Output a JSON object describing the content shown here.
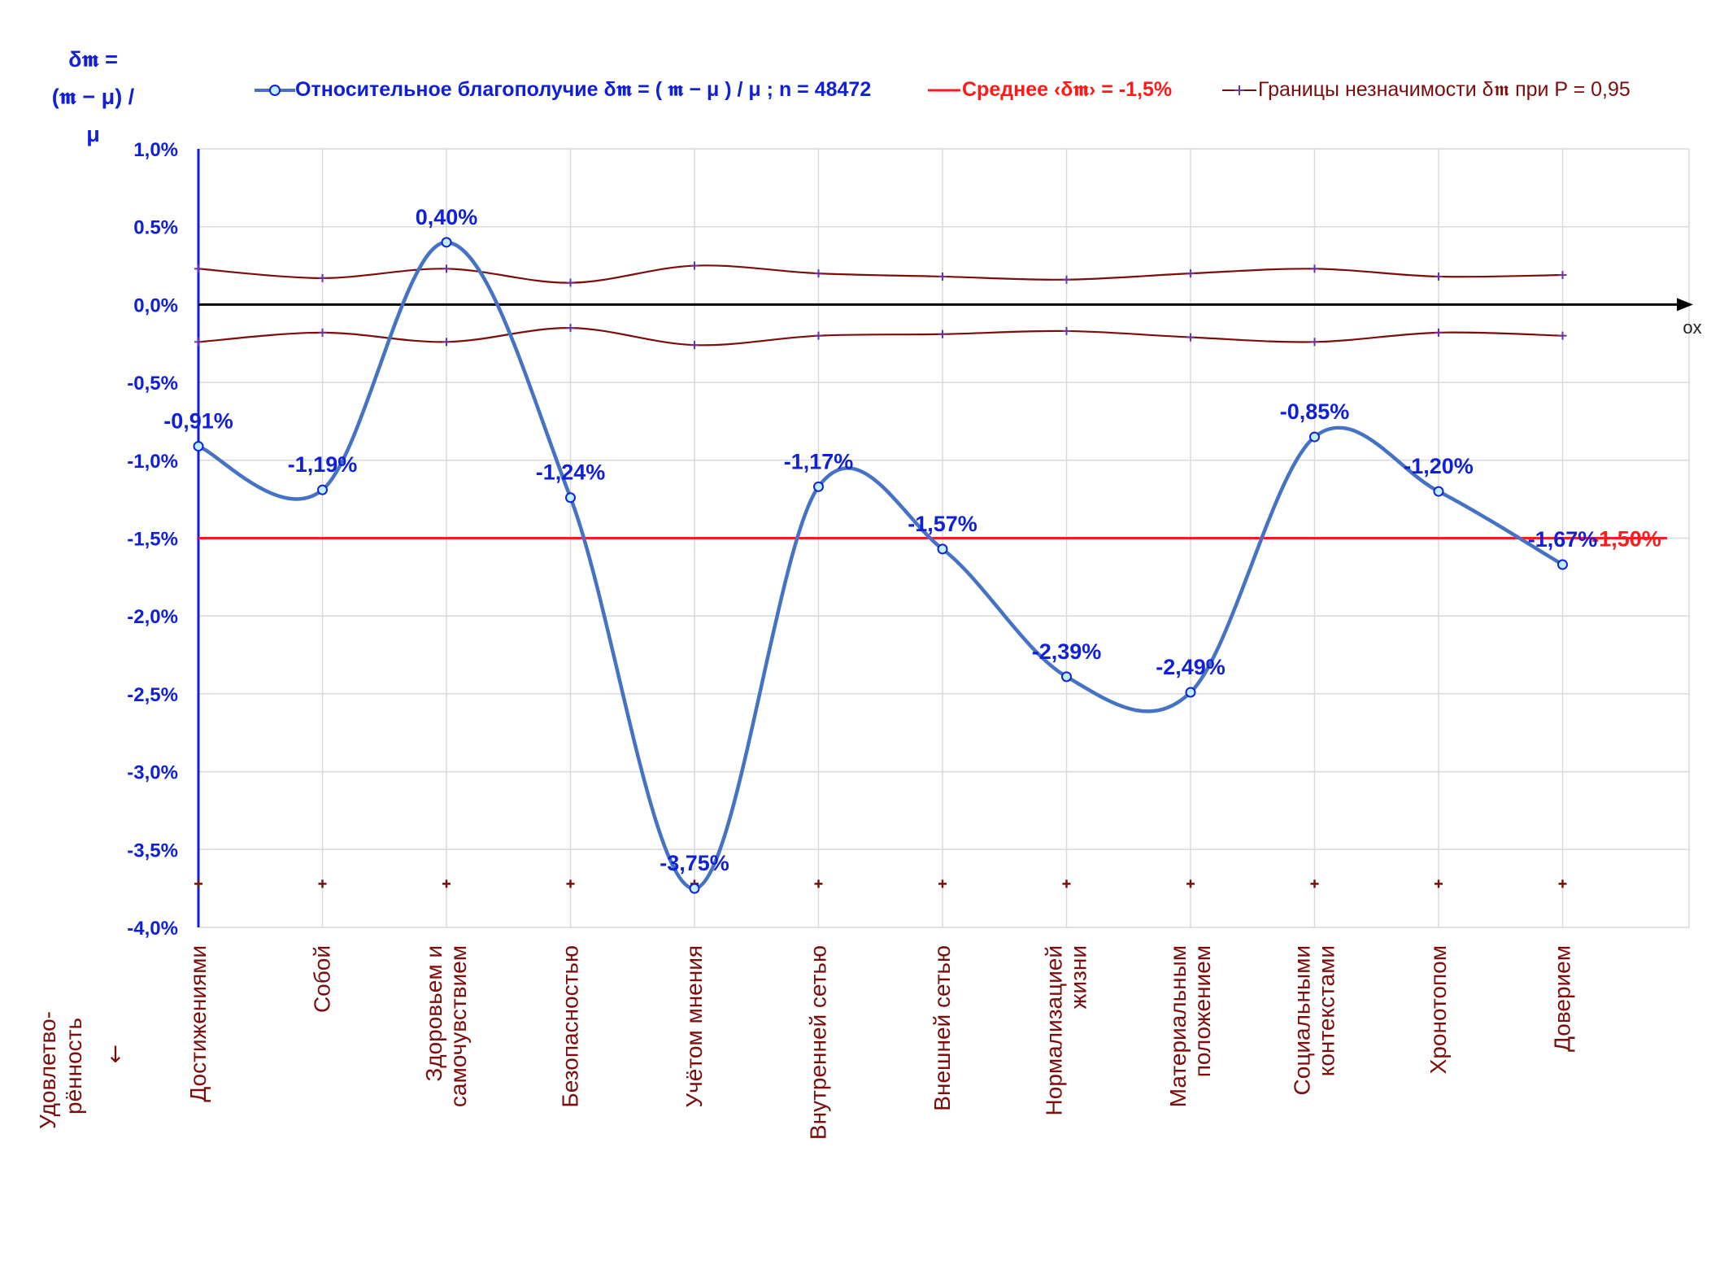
{
  "chart_data": {
    "type": "line",
    "y_axis_title": [
      "δ𝖒 =",
      "(𝖒 − μ) / μ"
    ],
    "x_axis_title": "Удовлетво-рённость ↓",
    "x_axis_name": "ox",
    "categories": [
      [
        "Достижениями"
      ],
      [
        "Собой"
      ],
      [
        "Здоровьем и",
        "самочувствием"
      ],
      [
        "Безопасностью"
      ],
      [
        "Учётом мнения"
      ],
      [
        "Внутренней сетью"
      ],
      [
        "Внешней сетью"
      ],
      [
        "Нормализацией",
        "жизни"
      ],
      [
        "Материальным",
        "положением"
      ],
      [
        "Социальными",
        "контекстами"
      ],
      [
        "Хронотопом"
      ],
      [
        "Доверием"
      ]
    ],
    "y_ticks": [
      "1,0%",
      "0.5%",
      "0,0%",
      "-0,5%",
      "-1,0%",
      "-1,5%",
      "-2,0%",
      "-2,5%",
      "-3,0%",
      "-3,5%",
      "-4,0%"
    ],
    "ylim": [
      -4.0,
      1.0
    ],
    "y_unit": "%",
    "grid": true,
    "series": [
      {
        "name": "Относительное благополучие δ𝖒 = ( 𝖒 − μ ) / μ ; n = 48472",
        "role": "main",
        "color": "#4472c4",
        "values": [
          -0.91,
          -1.19,
          0.4,
          -1.24,
          -3.75,
          -1.17,
          -1.57,
          -2.39,
          -2.49,
          -0.85,
          -1.2,
          -1.67
        ],
        "data_labels": [
          "-0,91%",
          "-1,19%",
          "0,40%",
          "-1,24%",
          "-3,75%",
          "-1,17%",
          "-1,57%",
          "-2,39%",
          "-2,49%",
          "-0,85%",
          "-1,20%",
          "-1,67%"
        ]
      },
      {
        "name": "Среднее ‹δ𝖒› = -1,5%",
        "role": "mean",
        "color": "#ff1a1a",
        "value": -1.5,
        "data_label": "-1,50%"
      },
      {
        "name": "Границы незначимости δ𝖒 при P = 0,95",
        "role": "bounds",
        "color": "#7b0d0d",
        "upper": [
          0.23,
          0.17,
          0.23,
          0.14,
          0.25,
          0.2,
          0.18,
          0.16,
          0.2,
          0.23,
          0.18,
          0.19
        ],
        "lower": [
          -0.24,
          -0.18,
          -0.24,
          -0.15,
          -0.26,
          -0.2,
          -0.19,
          -0.17,
          -0.21,
          -0.24,
          -0.18,
          -0.2
        ],
        "extra": [
          -3.72,
          -3.72,
          -3.72,
          -3.72,
          -3.72,
          -3.72,
          -3.72,
          -3.72,
          -3.72,
          -3.72,
          -3.72,
          -3.72
        ]
      }
    ],
    "legend_position": "top"
  }
}
